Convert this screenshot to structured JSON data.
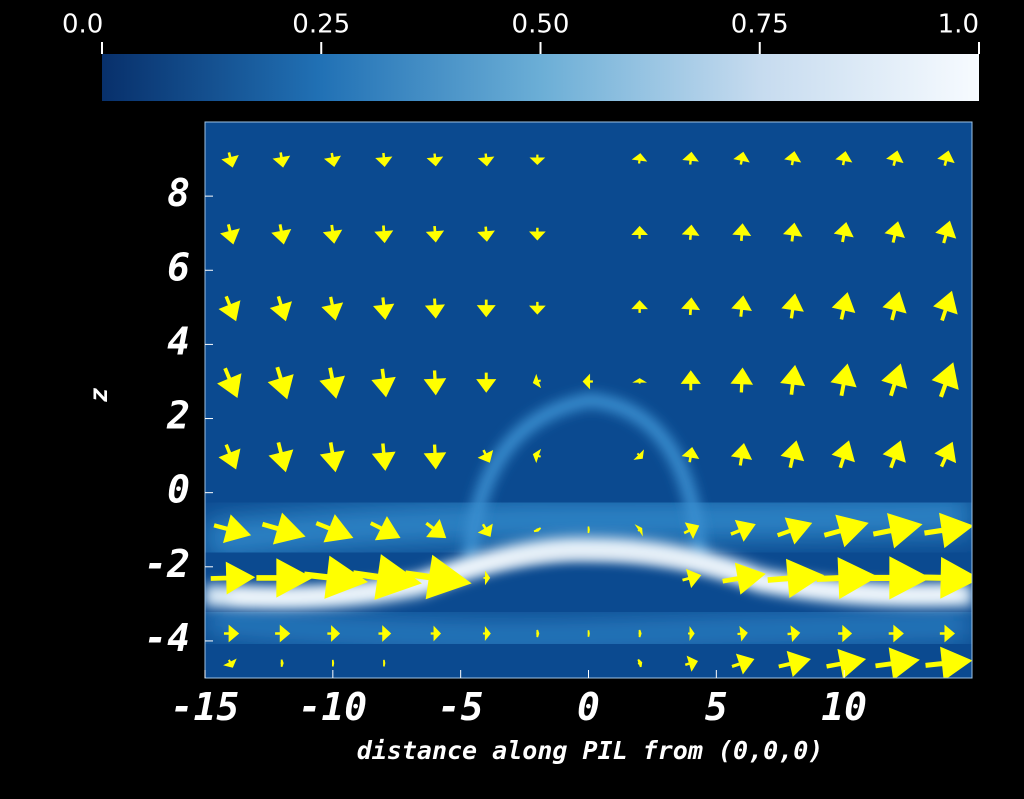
{
  "chart_data": {
    "type": "quiver",
    "xlabel": "distance along PIL from (0,0,0)",
    "ylabel": "z",
    "xlim": [
      -15,
      15
    ],
    "ylim": [
      -5,
      10
    ],
    "xticks": [
      -15,
      -10,
      -5,
      0,
      5,
      10
    ],
    "yticks": [
      -4,
      -2,
      0,
      2,
      4,
      6,
      8
    ],
    "colorbar": {
      "lim": [
        0,
        1
      ],
      "ticks": [
        {
          "value": 0,
          "label": "0.0"
        },
        0.25,
        {
          "value": 0.5,
          "label": "0.50"
        },
        0.75,
        {
          "value": 1,
          "label": "1.0"
        }
      ],
      "colormap": [
        "#08306b",
        "#2171b5",
        "#6baed6",
        "#c6dbef",
        "#f7fbff"
      ]
    },
    "arrow_color": "#ffff00",
    "vectors": {
      "x": [
        -14,
        -12,
        -10,
        -8,
        -6,
        -4,
        -2,
        0,
        2,
        4,
        6,
        8,
        10,
        12,
        14
      ],
      "z": [
        9,
        7,
        5,
        3,
        1,
        -1,
        -2.3,
        -3.8,
        -4.6
      ],
      "u": [
        [
          0.3,
          0.2,
          0.2,
          0.1,
          0.1,
          0.1,
          0,
          0,
          0.1,
          0.1,
          0.2,
          0.2,
          0.2,
          0.3,
          0.3
        ],
        [
          0.4,
          0.3,
          0.2,
          0.1,
          0.1,
          0.1,
          0,
          0,
          0,
          0.1,
          0.1,
          0.2,
          0.3,
          0.4,
          0.5
        ],
        [
          0.8,
          0.6,
          0.4,
          0.2,
          0.1,
          0,
          0,
          0,
          0,
          0.1,
          0.2,
          0.3,
          0.5,
          0.6,
          0.8
        ],
        [
          1,
          0.8,
          0.5,
          0.3,
          0.1,
          0,
          -0.6,
          -0.8,
          0,
          0,
          0.1,
          0.3,
          0.5,
          0.8,
          1
        ],
        [
          0.8,
          0.6,
          0.4,
          0.2,
          0.1,
          0.5,
          -0.6,
          0,
          0.4,
          0.2,
          0.3,
          0.5,
          0.7,
          0.8,
          0.9
        ],
        [
          3,
          3.5,
          3,
          2.4,
          1.6,
          0.6,
          0.1,
          0.1,
          0.3,
          1.2,
          2,
          2.8,
          3.6,
          4,
          4
        ],
        [
          3.6,
          4.6,
          5.2,
          5.6,
          5.4,
          0.5,
          0,
          0,
          0,
          1.5,
          3.5,
          4.6,
          5,
          5.2,
          5
        ],
        [
          1.2,
          1.2,
          1,
          1,
          0.8,
          0.6,
          0.2,
          0.1,
          0.2,
          0.5,
          0.8,
          1,
          1.1,
          1.2,
          1.2
        ],
        [
          0.3,
          0.2,
          0.1,
          0.1,
          0,
          0,
          0,
          0,
          0.3,
          1,
          1.8,
          2.6,
          3.2,
          3.6,
          3.8
        ]
      ],
      "w": [
        [
          -1.2,
          -1.2,
          -1.1,
          -1.1,
          -1,
          -1,
          -0.8,
          0,
          0.8,
          1,
          1,
          1.1,
          1.1,
          1.2,
          1.2
        ],
        [
          -1.6,
          -1.6,
          -1.5,
          -1.4,
          -1.3,
          -1.2,
          -1,
          0,
          1,
          1.2,
          1.4,
          1.5,
          1.6,
          1.7,
          1.8
        ],
        [
          -2,
          -2,
          -1.9,
          -1.8,
          -1.6,
          -1.4,
          -1,
          0,
          1,
          1.4,
          1.7,
          2,
          2.2,
          2.3,
          2.4
        ],
        [
          -2.4,
          -2.6,
          -2.5,
          -2.3,
          -2,
          -1.6,
          -0.2,
          0,
          0.4,
          1.6,
          2,
          2.4,
          2.6,
          2.6,
          2.8
        ],
        [
          -2,
          -2.4,
          -2.4,
          -2.2,
          -2,
          -1,
          0.2,
          0,
          -0.4,
          1.2,
          1.8,
          2.2,
          2.2,
          2.2,
          2
        ],
        [
          -0.8,
          -1,
          -1.2,
          -1.2,
          -1.2,
          -1,
          -0.2,
          0,
          0.2,
          0.6,
          0.8,
          1,
          1,
          0.8,
          0.6
        ],
        [
          0.1,
          0,
          -0.6,
          -0.8,
          -0.8,
          0,
          0,
          0,
          0,
          0.4,
          0.6,
          0.4,
          0.2,
          0,
          -0.1
        ],
        [
          0,
          0,
          0,
          0,
          0,
          0,
          0,
          0,
          0,
          0,
          0.1,
          0.1,
          0,
          0,
          0
        ],
        [
          -0.6,
          0,
          0,
          0,
          0,
          0,
          0,
          0,
          0.1,
          0.3,
          0.6,
          0.6,
          0.6,
          0.5,
          0.4
        ]
      ]
    }
  }
}
